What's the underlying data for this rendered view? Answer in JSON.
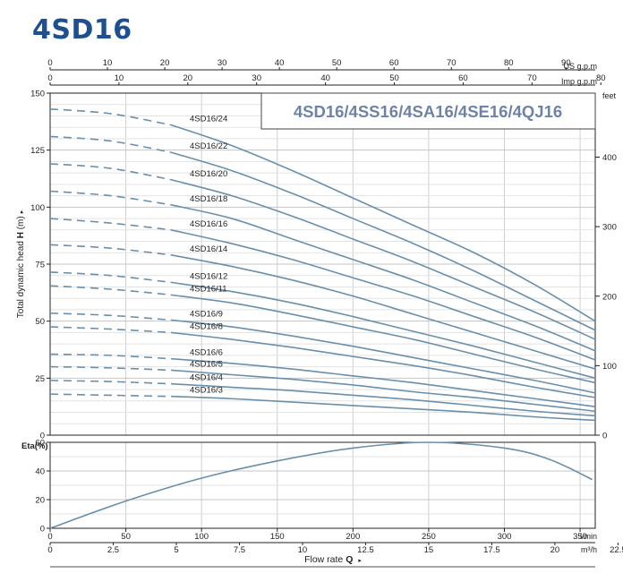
{
  "page": {
    "title": "4SD16"
  },
  "chart_data": [
    {
      "type": "line",
      "title": "4SD16/4SS16/4SA16/4SE16/4QJ16",
      "ylabel_prefix": "Total dynamic head ",
      "ylabel_bold": "H",
      "ylabel_suffix": " (m)",
      "xlim": [
        0,
        360
      ],
      "ylim": [
        0,
        150
      ],
      "y_ticks": [
        0,
        25,
        50,
        75,
        100,
        125,
        150
      ],
      "y2_unit": "feet",
      "y2_ticks": [
        0,
        100,
        200,
        300,
        400
      ],
      "top_axes": [
        {
          "unit": "US g.p.m",
          "ticks": [
            0,
            10,
            20,
            30,
            40,
            50,
            60,
            70,
            80,
            90
          ]
        },
        {
          "unit": "Imp g.p.m",
          "ticks": [
            0,
            10,
            20,
            30,
            40,
            50,
            60,
            70,
            80
          ]
        }
      ],
      "grid": true,
      "dashed_until_x": 80,
      "series": [
        {
          "name": "4SD16/24",
          "x": [
            0,
            40,
            80,
            120,
            160,
            200,
            240,
            280,
            320,
            360
          ],
          "y": [
            143,
            141,
            136,
            127,
            116,
            104,
            92,
            80,
            66,
            50
          ]
        },
        {
          "name": "4SD16/22",
          "x": [
            0,
            40,
            80,
            120,
            160,
            200,
            240,
            280,
            320,
            360
          ],
          "y": [
            131,
            129,
            124,
            116,
            106,
            95,
            84,
            72,
            59,
            46
          ]
        },
        {
          "name": "4SD16/20",
          "x": [
            0,
            40,
            80,
            120,
            160,
            200,
            240,
            280,
            320,
            360
          ],
          "y": [
            119,
            117,
            112,
            105,
            96,
            86,
            76,
            65,
            54,
            42
          ]
        },
        {
          "name": "4SD16/18",
          "x": [
            0,
            40,
            80,
            120,
            160,
            200,
            240,
            280,
            320,
            360
          ],
          "y": [
            107,
            105,
            101,
            95,
            86,
            77,
            68,
            58,
            48,
            37
          ]
        },
        {
          "name": "4SD16/16",
          "x": [
            0,
            40,
            80,
            120,
            160,
            200,
            240,
            280,
            320,
            360
          ],
          "y": [
            95,
            93,
            90,
            84,
            77,
            69,
            61,
            52,
            43,
            33
          ]
        },
        {
          "name": "4SD16/14",
          "x": [
            0,
            40,
            80,
            120,
            160,
            200,
            240,
            280,
            320,
            360
          ],
          "y": [
            83.5,
            82,
            79,
            74,
            68,
            61,
            53,
            45,
            37,
            29
          ]
        },
        {
          "name": "4SD16/12",
          "x": [
            0,
            40,
            80,
            120,
            160,
            200,
            240,
            280,
            320,
            360
          ],
          "y": [
            71.5,
            70,
            67,
            63,
            58,
            52,
            45.5,
            39,
            32,
            25
          ]
        },
        {
          "name": "4SD16/11",
          "x": [
            0,
            40,
            80,
            120,
            160,
            200,
            240,
            280,
            320,
            360
          ],
          "y": [
            65.5,
            64,
            61.5,
            58,
            53,
            47.5,
            42,
            35.5,
            29,
            23
          ]
        },
        {
          "name": "4SD16/9",
          "x": [
            0,
            40,
            80,
            120,
            160,
            200,
            240,
            280,
            320,
            360
          ],
          "y": [
            53.5,
            52.5,
            50.5,
            47.5,
            43.5,
            39,
            34,
            29,
            24,
            18.5
          ]
        },
        {
          "name": "4SD16/8",
          "x": [
            0,
            40,
            80,
            120,
            160,
            200,
            240,
            280,
            320,
            360
          ],
          "y": [
            47.5,
            46.5,
            45,
            42,
            38.5,
            34.5,
            30.5,
            26,
            21,
            16.5
          ]
        },
        {
          "name": "4SD16/6",
          "x": [
            0,
            40,
            80,
            120,
            160,
            200,
            240,
            280,
            320,
            360
          ],
          "y": [
            35.5,
            35,
            33.5,
            31.5,
            29,
            26,
            23,
            19.5,
            16,
            12.5
          ]
        },
        {
          "name": "4SD16/5",
          "x": [
            0,
            40,
            80,
            120,
            160,
            200,
            240,
            280,
            320,
            360
          ],
          "y": [
            30,
            29.5,
            28.5,
            26.5,
            24.5,
            22,
            19,
            16.5,
            13.5,
            10.5
          ]
        },
        {
          "name": "4SD16/4",
          "x": [
            0,
            40,
            80,
            120,
            160,
            200,
            240,
            280,
            320,
            360
          ],
          "y": [
            24,
            23.5,
            22.5,
            21,
            19.5,
            17.5,
            15.5,
            13,
            10.5,
            8.5
          ]
        },
        {
          "name": "4SD16/3",
          "x": [
            0,
            40,
            80,
            120,
            160,
            200,
            240,
            280,
            320,
            360
          ],
          "y": [
            18,
            17.5,
            17,
            16,
            14.5,
            13,
            11.5,
            10,
            8,
            6.5
          ]
        }
      ]
    },
    {
      "type": "line",
      "ylabel": "Eta(%)",
      "xlim": [
        0,
        360
      ],
      "ylim": [
        0,
        60
      ],
      "y_ticks": [
        0,
        20,
        40,
        60
      ],
      "x_ticks": [
        0,
        50,
        100,
        150,
        200,
        250,
        300,
        350
      ],
      "x_unit": "l/min",
      "x2_ticks": [
        "0",
        "2.5",
        "5",
        "7.5",
        "10",
        "12.5",
        "15",
        "17.5",
        "20",
        "22.5"
      ],
      "x2_unit": "m³/h",
      "xlabel_prefix": "Flow  rate  ",
      "xlabel_bold": "Q",
      "grid": true,
      "series": [
        {
          "x": [
            0,
            50,
            100,
            150,
            200,
            250,
            300,
            330,
            358
          ],
          "y": [
            0,
            19,
            35,
            47,
            56,
            60,
            56,
            48,
            34
          ]
        }
      ]
    }
  ]
}
